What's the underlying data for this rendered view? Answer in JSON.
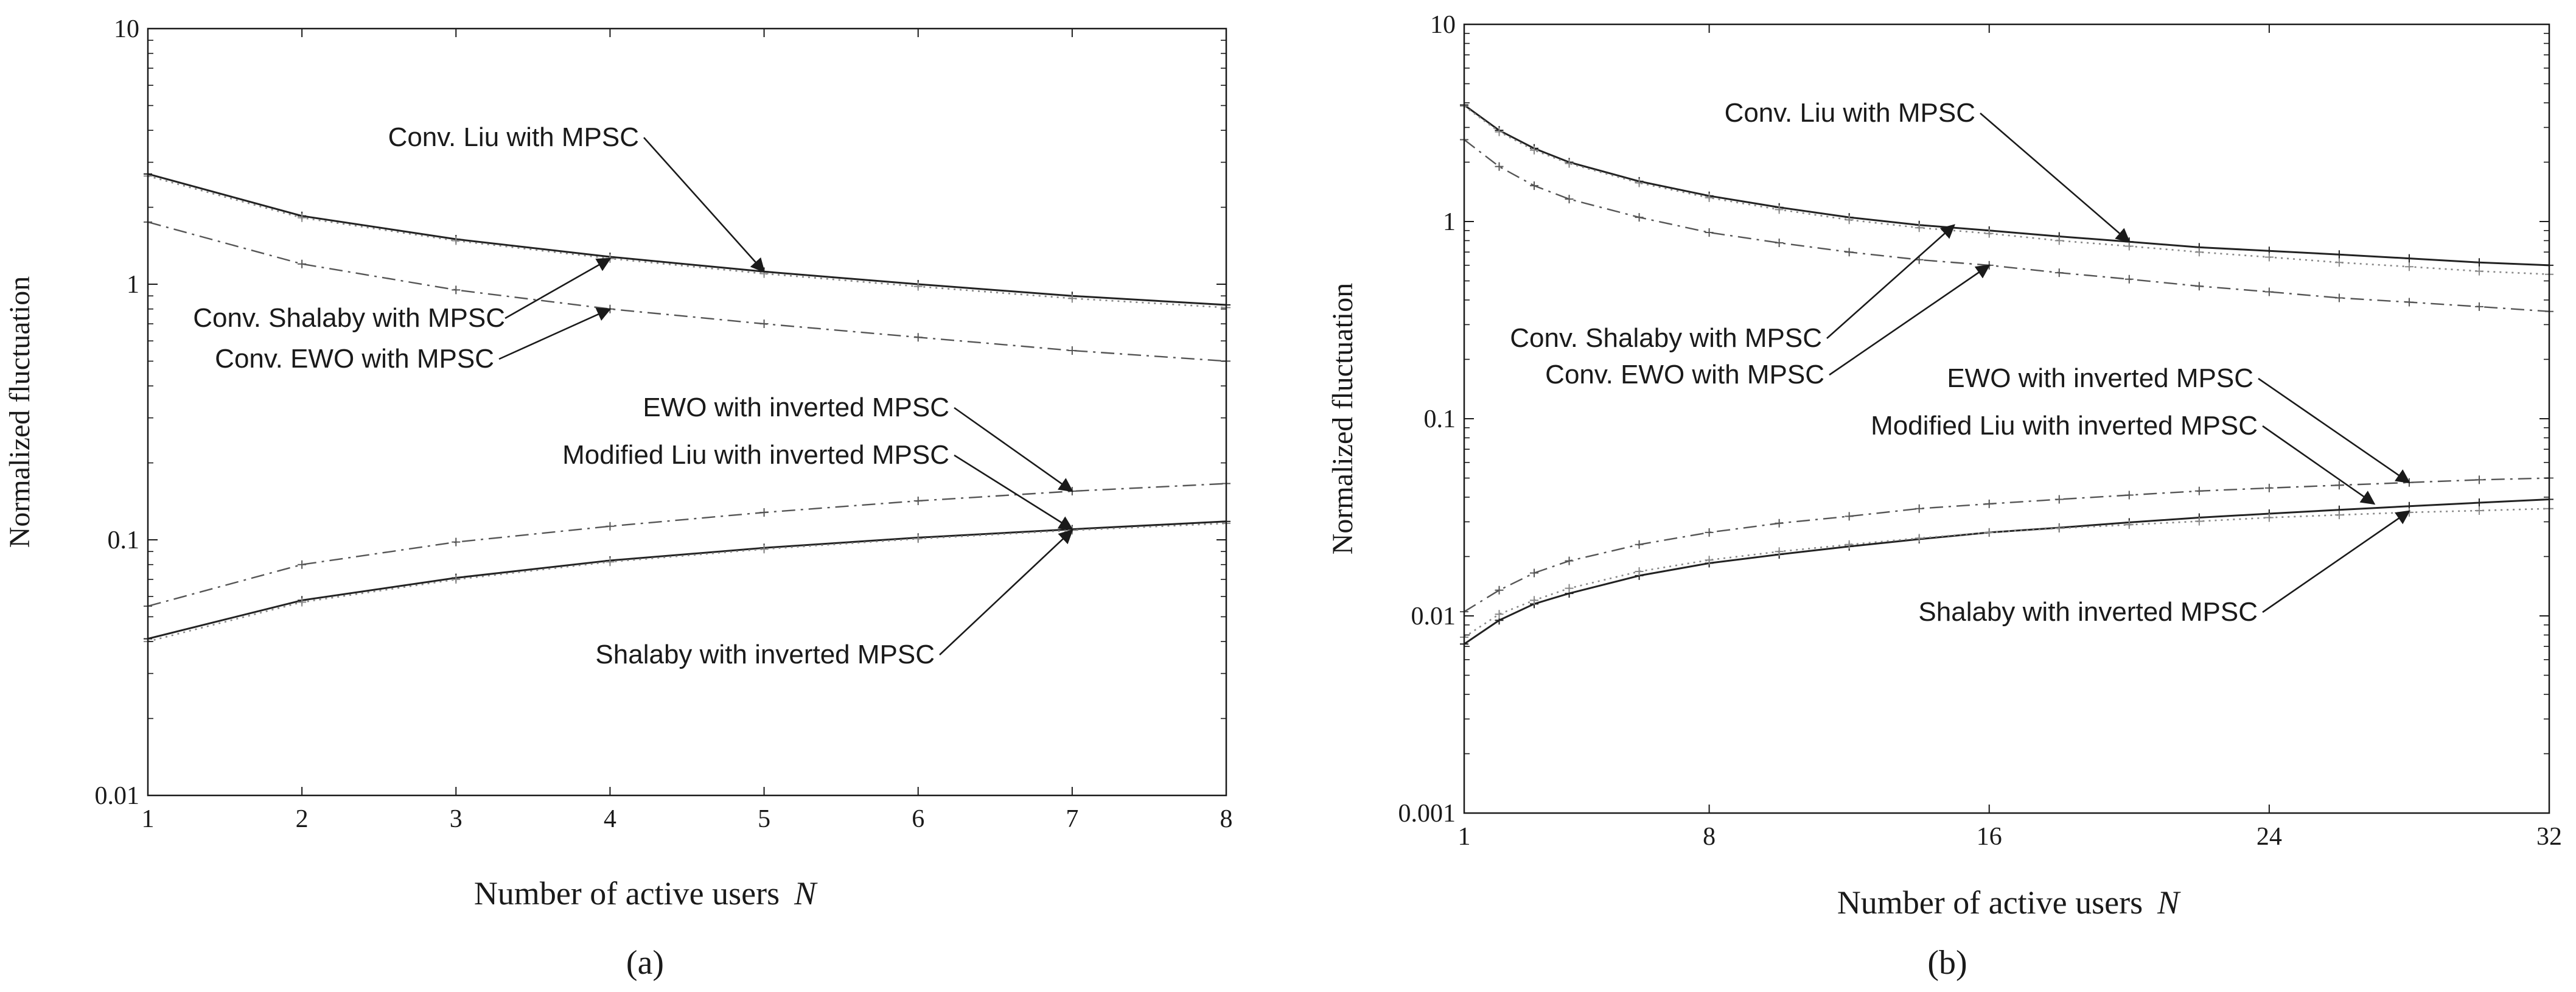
{
  "colors": {
    "ink": "#1a1a1a",
    "line_dark": "#222222",
    "line_mid": "#555555",
    "line_light": "#888888"
  },
  "chart_data": [
    {
      "type": "line",
      "panel_label": "(a)",
      "xlabel": "Number of active users",
      "xlabel_symbol": "N",
      "ylabel": "Normalized fluctuation",
      "yscale": "log",
      "xlim": [
        1,
        8
      ],
      "ylim": [
        0.01,
        10
      ],
      "xticks": [
        1,
        2,
        3,
        4,
        5,
        6,
        7,
        8
      ],
      "xtick_labels": [
        "1",
        "2",
        "3",
        "4",
        "5",
        "6",
        "7",
        "8"
      ],
      "yticks": [
        0.01,
        0.1,
        1,
        10
      ],
      "ytick_labels": [
        "0.01",
        "0.1",
        "1",
        "10"
      ],
      "grid": false,
      "series": [
        {
          "name": "Conv. Liu with MPSC",
          "style": "solid",
          "color": "#222222",
          "marker": "plus",
          "x": [
            1,
            2,
            3,
            4,
            5,
            6,
            7,
            8
          ],
          "y": [
            2.7,
            1.85,
            1.5,
            1.28,
            1.12,
            1.0,
            0.9,
            0.83
          ]
        },
        {
          "name": "Conv. Shalaby with MPSC",
          "style": "dotted",
          "color": "#888888",
          "marker": "plus",
          "x": [
            1,
            2,
            3,
            4,
            5,
            6,
            7,
            8
          ],
          "y": [
            2.65,
            1.82,
            1.48,
            1.26,
            1.1,
            0.98,
            0.88,
            0.81
          ]
        },
        {
          "name": "Conv. EWO with MPSC",
          "style": "dashdot",
          "color": "#555555",
          "marker": "plus",
          "x": [
            1,
            2,
            3,
            4,
            5,
            6,
            7,
            8
          ],
          "y": [
            1.75,
            1.2,
            0.95,
            0.8,
            0.7,
            0.62,
            0.55,
            0.5
          ]
        },
        {
          "name": "EWO with inverted MPSC",
          "style": "dashdot",
          "color": "#555555",
          "marker": "plus",
          "x": [
            1,
            2,
            3,
            4,
            5,
            6,
            7,
            8
          ],
          "y": [
            0.055,
            0.08,
            0.098,
            0.113,
            0.128,
            0.142,
            0.155,
            0.166
          ]
        },
        {
          "name": "Modified Liu with inverted MPSC",
          "style": "solid",
          "color": "#222222",
          "marker": "plus",
          "x": [
            1,
            2,
            3,
            4,
            5,
            6,
            7,
            8
          ],
          "y": [
            0.041,
            0.058,
            0.071,
            0.083,
            0.093,
            0.102,
            0.11,
            0.118
          ]
        },
        {
          "name": "Shalaby with inverted MPSC",
          "style": "dotted",
          "color": "#888888",
          "marker": "plus",
          "x": [
            1,
            2,
            3,
            4,
            5,
            6,
            7,
            8
          ],
          "y": [
            0.04,
            0.057,
            0.07,
            0.082,
            0.092,
            0.101,
            0.109,
            0.116
          ]
        }
      ],
      "annotations": [
        {
          "text": "Conv. Liu with MPSC",
          "target_x": 5,
          "target_y": 1.12
        },
        {
          "text": "Conv. Shalaby with MPSC",
          "target_x": 4,
          "target_y": 1.26
        },
        {
          "text": "Conv. EWO with MPSC",
          "target_x": 4,
          "target_y": 0.8
        },
        {
          "text": "EWO with inverted MPSC",
          "target_x": 7,
          "target_y": 0.155
        },
        {
          "text": "Modified Liu with inverted MPSC",
          "target_x": 7,
          "target_y": 0.11
        },
        {
          "text": "Shalaby with inverted MPSC",
          "target_x": 7,
          "target_y": 0.109
        }
      ]
    },
    {
      "type": "line",
      "panel_label": "(b)",
      "xlabel": "Number of active users",
      "xlabel_symbol": "N",
      "ylabel": "Normalized fluctuation",
      "yscale": "log",
      "xlim": [
        1,
        32
      ],
      "ylim": [
        0.001,
        10
      ],
      "xticks": [
        1,
        8,
        16,
        24,
        32
      ],
      "xtick_labels": [
        "1",
        "8",
        "16",
        "24",
        "32"
      ],
      "yticks": [
        0.001,
        0.01,
        0.1,
        1,
        10
      ],
      "ytick_labels": [
        "0.001",
        "0.01",
        "0.1",
        "1",
        "10"
      ],
      "grid": false,
      "series": [
        {
          "name": "Conv. Liu with MPSC",
          "style": "solid",
          "color": "#222222",
          "marker": "plus",
          "x": [
            1,
            2,
            3,
            4,
            6,
            8,
            10,
            12,
            14,
            16,
            18,
            20,
            22,
            24,
            26,
            28,
            30,
            32
          ],
          "y": [
            3.9,
            2.9,
            2.35,
            2.0,
            1.6,
            1.35,
            1.18,
            1.05,
            0.96,
            0.9,
            0.84,
            0.79,
            0.74,
            0.71,
            0.68,
            0.65,
            0.62,
            0.6
          ]
        },
        {
          "name": "Conv. Shalaby with MPSC",
          "style": "dotted",
          "color": "#888888",
          "marker": "plus",
          "x": [
            1,
            2,
            3,
            4,
            6,
            8,
            10,
            12,
            14,
            16,
            18,
            20,
            22,
            24,
            26,
            28,
            30,
            32
          ],
          "y": [
            3.85,
            2.85,
            2.3,
            1.97,
            1.57,
            1.32,
            1.15,
            1.02,
            0.93,
            0.87,
            0.8,
            0.75,
            0.7,
            0.66,
            0.62,
            0.59,
            0.56,
            0.54
          ]
        },
        {
          "name": "Conv. EWO with MPSC",
          "style": "dashdot",
          "color": "#555555",
          "marker": "plus",
          "x": [
            1,
            2,
            3,
            4,
            6,
            8,
            10,
            12,
            14,
            16,
            18,
            20,
            22,
            24,
            26,
            28,
            30,
            32
          ],
          "y": [
            2.6,
            1.9,
            1.52,
            1.3,
            1.05,
            0.88,
            0.78,
            0.7,
            0.64,
            0.6,
            0.55,
            0.51,
            0.47,
            0.44,
            0.41,
            0.39,
            0.37,
            0.35
          ]
        },
        {
          "name": "EWO with inverted MPSC",
          "style": "dashdot",
          "color": "#555555",
          "marker": "plus",
          "x": [
            1,
            2,
            3,
            4,
            6,
            8,
            10,
            12,
            14,
            16,
            18,
            20,
            22,
            24,
            26,
            28,
            30,
            32
          ],
          "y": [
            0.0105,
            0.0135,
            0.0165,
            0.019,
            0.023,
            0.0265,
            0.0295,
            0.032,
            0.035,
            0.037,
            0.039,
            0.041,
            0.043,
            0.0445,
            0.046,
            0.0475,
            0.049,
            0.05
          ]
        },
        {
          "name": "Modified Liu with inverted MPSC",
          "style": "solid",
          "color": "#222222",
          "marker": "plus",
          "x": [
            1,
            2,
            3,
            4,
            6,
            8,
            10,
            12,
            14,
            16,
            18,
            20,
            22,
            24,
            26,
            28,
            30,
            32
          ],
          "y": [
            0.0072,
            0.0095,
            0.0115,
            0.013,
            0.016,
            0.0185,
            0.0205,
            0.0225,
            0.0245,
            0.0265,
            0.028,
            0.0298,
            0.0315,
            0.033,
            0.0345,
            0.036,
            0.0375,
            0.039
          ]
        },
        {
          "name": "Shalaby with inverted MPSC",
          "style": "dotted",
          "color": "#888888",
          "marker": "plus",
          "x": [
            1,
            2,
            3,
            4,
            6,
            8,
            10,
            12,
            14,
            16,
            18,
            20,
            22,
            24,
            26,
            28,
            30,
            32
          ],
          "y": [
            0.0078,
            0.0102,
            0.012,
            0.0138,
            0.0168,
            0.0192,
            0.0212,
            0.023,
            0.0248,
            0.0265,
            0.0278,
            0.029,
            0.0302,
            0.0315,
            0.0325,
            0.0335,
            0.0342,
            0.035
          ]
        }
      ],
      "annotations": [
        {
          "text": "Conv. Liu with MPSC",
          "target_x": 20,
          "target_y": 0.79
        },
        {
          "text": "Conv. Shalaby with MPSC",
          "target_x": 15,
          "target_y": 0.96
        },
        {
          "text": "Conv. EWO with MPSC",
          "target_x": 16,
          "target_y": 0.6
        },
        {
          "text": "EWO with inverted MPSC",
          "target_x": 28,
          "target_y": 0.0475
        },
        {
          "text": "Modified Liu with inverted MPSC",
          "target_x": 27,
          "target_y": 0.037
        },
        {
          "text": "Shalaby with inverted MPSC",
          "target_x": 28,
          "target_y": 0.034
        }
      ]
    }
  ]
}
